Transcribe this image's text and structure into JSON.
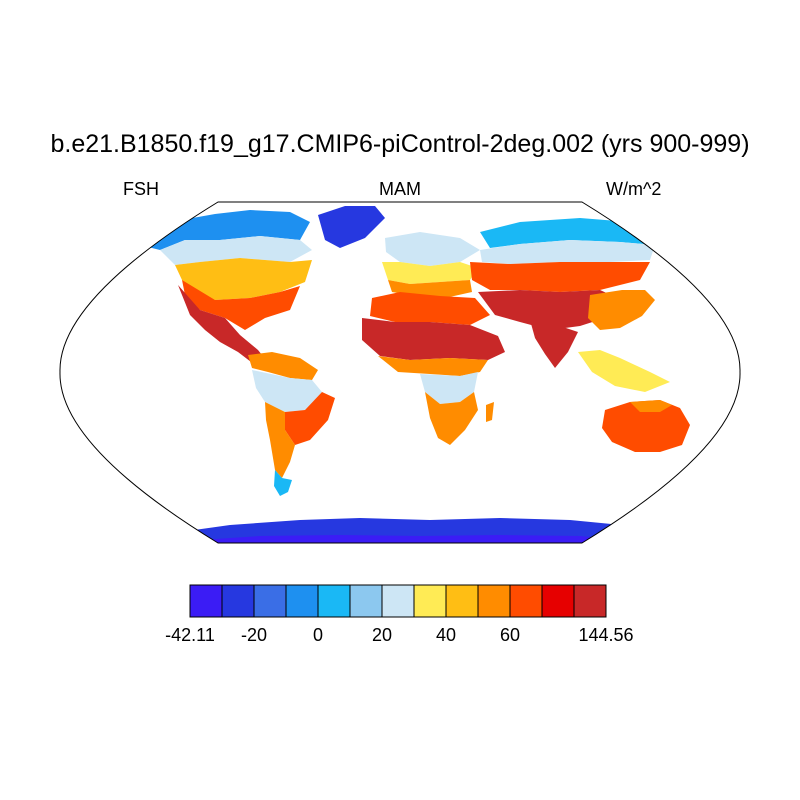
{
  "title": "b.e21.B1850.f19_g17.CMIP6-piControl-2deg.002 (yrs 900-999)",
  "subtitle_left": "FSH",
  "subtitle_center": "MAM",
  "subtitle_right": "W/m^2",
  "colorbar": {
    "colors": [
      "#3b1cf5",
      "#2638e0",
      "#3a6ee6",
      "#1e90f0",
      "#1ab8f5",
      "#8cc8ef",
      "#cde6f5",
      "#ffeb55",
      "#ffbe14",
      "#ff8c00",
      "#ff4c00",
      "#e60000",
      "#c82828"
    ],
    "labels": [
      "-42.11",
      "-20",
      "0",
      "20",
      "40",
      "60",
      "144.56"
    ]
  }
}
